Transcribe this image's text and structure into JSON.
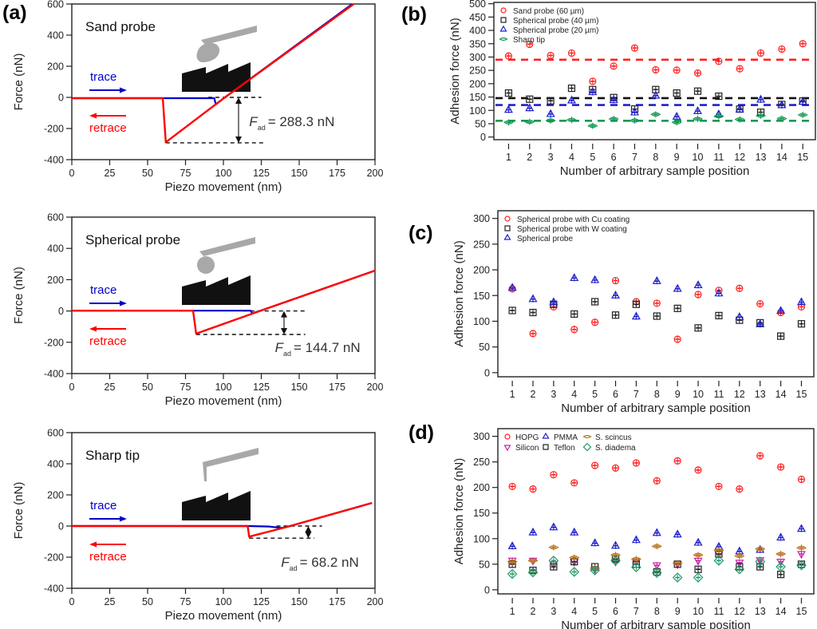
{
  "panel_labels": [
    "(a)",
    "(b)",
    "(c)",
    "(d)"
  ],
  "chart_data": [
    {
      "id": "a1",
      "panel": "(a)",
      "type": "line",
      "title": "Sand probe",
      "xlabel": "Piezo movement (nm)",
      "ylabel": "Force (nN)",
      "xlim": [
        0,
        200
      ],
      "ylim": [
        -400,
        600
      ],
      "xticks": [
        0,
        25,
        50,
        75,
        100,
        125,
        150,
        175,
        200
      ],
      "yticks": [
        -400,
        -200,
        0,
        200,
        400,
        600
      ],
      "series": [
        {
          "name": "trace",
          "color": "#0000cc",
          "x": [
            0,
            94,
            95,
            101,
            185
          ],
          "y": [
            -5,
            -5,
            -45,
            0,
            600
          ]
        },
        {
          "name": "retrace",
          "color": "#ff0000",
          "x": [
            0,
            60,
            62,
            101,
            186
          ],
          "y": [
            -5,
            -5,
            -288,
            0,
            600
          ]
        }
      ],
      "annotations": {
        "trace_label": "trace",
        "retrace_label": "retrace",
        "fad_symbol": "F",
        "fad_subscript": "ad",
        "fad_value": "= 288.3 nN",
        "adhesion_force_nN": 288.3,
        "dashed_upper": {
          "x": [
            90,
            125
          ],
          "y": 0
        },
        "dashed_lower": {
          "x": [
            62,
            128
          ],
          "y": -292
        },
        "arrow_x": 110
      },
      "schematic": "sand-probe"
    },
    {
      "id": "a2",
      "panel": "(a)",
      "type": "line",
      "title": "Spherical probe",
      "xlabel": "Piezo movement (nm)",
      "ylabel": "Force (nN)",
      "xlim": [
        0,
        200
      ],
      "ylim": [
        -400,
        600
      ],
      "xticks": [
        0,
        25,
        50,
        75,
        100,
        125,
        150,
        175,
        200
      ],
      "yticks": [
        -400,
        -200,
        0,
        200,
        400,
        600
      ],
      "series": [
        {
          "name": "trace",
          "color": "#0000cc",
          "x": [
            0,
            118,
            119,
            124,
            200
          ],
          "y": [
            2,
            2,
            -15,
            0,
            258
          ]
        },
        {
          "name": "retrace",
          "color": "#ff0000",
          "x": [
            0,
            80,
            82,
            124,
            200
          ],
          "y": [
            2,
            2,
            -145,
            0,
            258
          ]
        }
      ],
      "annotations": {
        "trace_label": "trace",
        "retrace_label": "retrace",
        "fad_symbol": "F",
        "fad_subscript": "ad",
        "fad_value": "= 144.7 nN",
        "adhesion_force_nN": 144.7,
        "dashed_upper": {
          "x": [
            113,
            154
          ],
          "y": 0
        },
        "dashed_lower": {
          "x": [
            82,
            154
          ],
          "y": -150
        },
        "arrow_x": 140
      },
      "schematic": "spherical-probe"
    },
    {
      "id": "a3",
      "panel": "(a)",
      "type": "line",
      "title": "Sharp tip",
      "xlabel": "Piezo movement (nm)",
      "ylabel": "Force (nN)",
      "xlim": [
        0,
        200
      ],
      "ylim": [
        -400,
        600
      ],
      "xticks": [
        0,
        25,
        50,
        75,
        100,
        125,
        150,
        175,
        200
      ],
      "yticks": [
        -400,
        -200,
        0,
        200,
        400,
        600
      ],
      "series": [
        {
          "name": "trace",
          "color": "#0000cc",
          "x": [
            0,
            116,
            130,
            138,
            141,
            198
          ],
          "y": [
            0,
            0,
            -3,
            -12,
            -8,
            148
          ]
        },
        {
          "name": "retrace",
          "color": "#ff0000",
          "x": [
            0,
            116,
            117,
            141,
            198
          ],
          "y": [
            0,
            0,
            -68,
            -8,
            148
          ]
        }
      ],
      "annotations": {
        "trace_label": "trace",
        "retrace_label": "retrace",
        "fad_symbol": "F",
        "fad_subscript": "ad",
        "fad_value": "= 68.2 nN",
        "adhesion_force_nN": 68.2,
        "dashed_upper": {
          "x": [
            135,
            165
          ],
          "y": 0
        },
        "dashed_lower": {
          "x": [
            117,
            160
          ],
          "y": -78
        },
        "arrow_x": 156
      },
      "schematic": "sharp-tip"
    },
    {
      "id": "b",
      "panel": "(b)",
      "type": "scatter",
      "xlabel": "Number of arbitrary sample position",
      "ylabel": "Adhesion force (nN)",
      "xlim": [
        0.3,
        15.6
      ],
      "ylim": [
        -10,
        505
      ],
      "xticks": [
        1,
        2,
        3,
        4,
        5,
        6,
        7,
        8,
        9,
        10,
        11,
        12,
        13,
        14,
        15
      ],
      "yticks": [
        0,
        50,
        100,
        150,
        200,
        250,
        300,
        350,
        400,
        450,
        500
      ],
      "legend_position": "top-left",
      "series": [
        {
          "name": "Sand probe (60 µm)",
          "marker": "circle",
          "color": "#ff2020",
          "values": [
            304,
            348,
            306,
            315,
            209,
            266,
            334,
            252,
            251,
            240,
            284,
            256,
            315,
            330,
            350
          ],
          "mean_line": 290
        },
        {
          "name": "Spherical probe (40 µm)",
          "marker": "square",
          "color": "#222222",
          "values": [
            165,
            142,
            136,
            183,
            178,
            148,
            105,
            178,
            165,
            172,
            153,
            105,
            93,
            122,
            135
          ],
          "mean_line": 146
        },
        {
          "name": "Spherical probe (20 µm)",
          "marker": "triangle",
          "color": "#2020cc",
          "values": [
            102,
            108,
            86,
            137,
            168,
            138,
            92,
            155,
            76,
            97,
            85,
            103,
            140,
            119,
            132
          ],
          "mean_line": 120
        },
        {
          "name": "Sharp tip",
          "marker": "lens",
          "color": "#119955",
          "values": [
            55,
            57,
            62,
            64,
            42,
            68,
            62,
            85,
            55,
            68,
            78,
            66,
            80,
            69,
            83
          ],
          "mean_line": 61
        }
      ]
    },
    {
      "id": "c",
      "panel": "(c)",
      "type": "scatter",
      "xlabel": "Number of arbitrary sample position",
      "ylabel": "Adhesion force (nN)",
      "xlim": [
        0.3,
        15.6
      ],
      "ylim": [
        -8,
        315
      ],
      "xticks": [
        1,
        2,
        3,
        4,
        5,
        6,
        7,
        8,
        9,
        10,
        11,
        12,
        13,
        14,
        15
      ],
      "yticks": [
        0,
        50,
        100,
        150,
        200,
        250,
        300
      ],
      "legend_position": "top-left",
      "series": [
        {
          "name": "Spherical probe with Cu coating",
          "marker": "circle",
          "color": "#ff2020",
          "values": [
            163,
            76,
            128,
            84,
            98,
            179,
            138,
            135,
            65,
            152,
            160,
            164,
            134,
            117,
            128
          ]
        },
        {
          "name": "Spherical probe with W coating",
          "marker": "square",
          "color": "#222222",
          "values": [
            121,
            117,
            133,
            114,
            138,
            112,
            133,
            110,
            125,
            87,
            111,
            102,
            97,
            71,
            95
          ]
        },
        {
          "name": "Spherical probe",
          "marker": "triangle",
          "color": "#2020cc",
          "values": [
            165,
            143,
            137,
            184,
            180,
            150,
            109,
            178,
            163,
            170,
            154,
            108,
            94,
            120,
            137
          ]
        }
      ]
    },
    {
      "id": "d",
      "panel": "(d)",
      "type": "scatter",
      "xlabel": "Number of arbitrary sample position",
      "ylabel": "Adhesion force (nN)",
      "xlim": [
        0.3,
        15.6
      ],
      "ylim": [
        -8,
        315
      ],
      "xticks": [
        1,
        2,
        3,
        4,
        5,
        6,
        7,
        8,
        9,
        10,
        11,
        12,
        13,
        14,
        15
      ],
      "yticks": [
        0,
        50,
        100,
        150,
        200,
        250,
        300
      ],
      "legend_position": "top-left",
      "series": [
        {
          "name": "HOPG",
          "marker": "circle",
          "color": "#ff2020",
          "values": [
            202,
            197,
            225,
            209,
            243,
            238,
            248,
            213,
            252,
            234,
            202,
            197,
            262,
            240,
            216
          ]
        },
        {
          "name": "Silicon",
          "marker": "triangle-down",
          "color": "#cc22aa",
          "values": [
            57,
            57,
            50,
            55,
            40,
            55,
            55,
            48,
            50,
            57,
            70,
            53,
            58,
            55,
            70
          ]
        },
        {
          "name": "PMMA",
          "marker": "triangle",
          "color": "#2020cc",
          "values": [
            85,
            112,
            122,
            112,
            91,
            86,
            97,
            111,
            108,
            92,
            84,
            75,
            78,
            102,
            119
          ]
        },
        {
          "name": "Teflon",
          "marker": "square",
          "color": "#222222",
          "values": [
            50,
            38,
            45,
            55,
            45,
            60,
            50,
            35,
            50,
            40,
            70,
            45,
            45,
            30,
            50
          ]
        },
        {
          "name": "S. scincus",
          "marker": "lens",
          "color": "#b8741a",
          "values": [
            55,
            57,
            83,
            63,
            42,
            68,
            60,
            85,
            52,
            68,
            77,
            66,
            80,
            70,
            82
          ]
        },
        {
          "name": "S. diadema",
          "marker": "diamond",
          "color": "#229966",
          "values": [
            31,
            34,
            57,
            35,
            38,
            57,
            44,
            33,
            24,
            24,
            57,
            40,
            55,
            45,
            48
          ]
        }
      ]
    }
  ]
}
